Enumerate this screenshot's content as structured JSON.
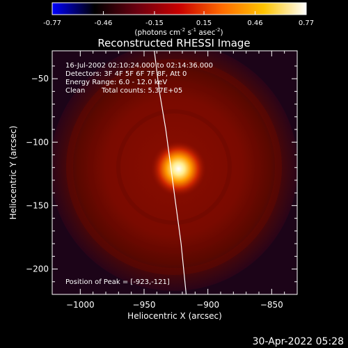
{
  "colorbar": {
    "ticks": [
      "-0.77",
      "-0.46",
      "-0.15",
      "0.15",
      "0.46",
      "0.77"
    ],
    "tick_values": [
      -0.77,
      -0.46,
      -0.15,
      0.15,
      0.46,
      0.77
    ],
    "range": [
      -0.77,
      0.77
    ],
    "colormap": [
      "#0000ff",
      "#000000",
      "#6a0010",
      "#c80000",
      "#ff6a00",
      "#ffc400",
      "#ffffff"
    ],
    "units_label": "(photons cm",
    "units_exp1": "-2",
    "units_mid": " s",
    "units_exp2": "-1",
    "units_mid2": " asec",
    "units_exp3": "-2",
    "units_close": ")"
  },
  "chart_data": {
    "type": "heatmap",
    "title": "Reconstructed RHESSI Image",
    "xlabel": "Heliocentric X (arcsec)",
    "ylabel": "Heliocentric Y (arcsec)",
    "xlim": [
      -1022,
      -830
    ],
    "ylim": [
      -220,
      -28
    ],
    "xticks": [
      -1000,
      -950,
      -900,
      -850
    ],
    "yticks": [
      -50,
      -100,
      -150,
      -200
    ],
    "xtick_labels": [
      "−1000",
      "−950",
      "−900",
      "−850"
    ],
    "ytick_labels": [
      "−50",
      "−100",
      "−150",
      "−200"
    ],
    "peak": {
      "x": -923,
      "y": -121
    },
    "limb_points": [
      [
        -942,
        -28
      ],
      [
        -938,
        -60
      ],
      [
        -933,
        -90
      ],
      [
        -929,
        -120
      ],
      [
        -925,
        -150
      ],
      [
        -921,
        -180
      ],
      [
        -917,
        -220
      ]
    ],
    "annotations": {
      "line1": "16-Jul-2002 02:10:24.000 to 02:14:36.000",
      "line2": "Detectors: 3F 4F 5F 6F 7F 8F, Att 0",
      "line3": "Energy Range: 6.0 - 12.0 keV",
      "line4_a": "Clean",
      "line4_b": "Total counts: 5.37E+05",
      "peak_text": "Position of Peak = [-923,-121]"
    }
  },
  "timestamp": "30-Apr-2022 05:28"
}
